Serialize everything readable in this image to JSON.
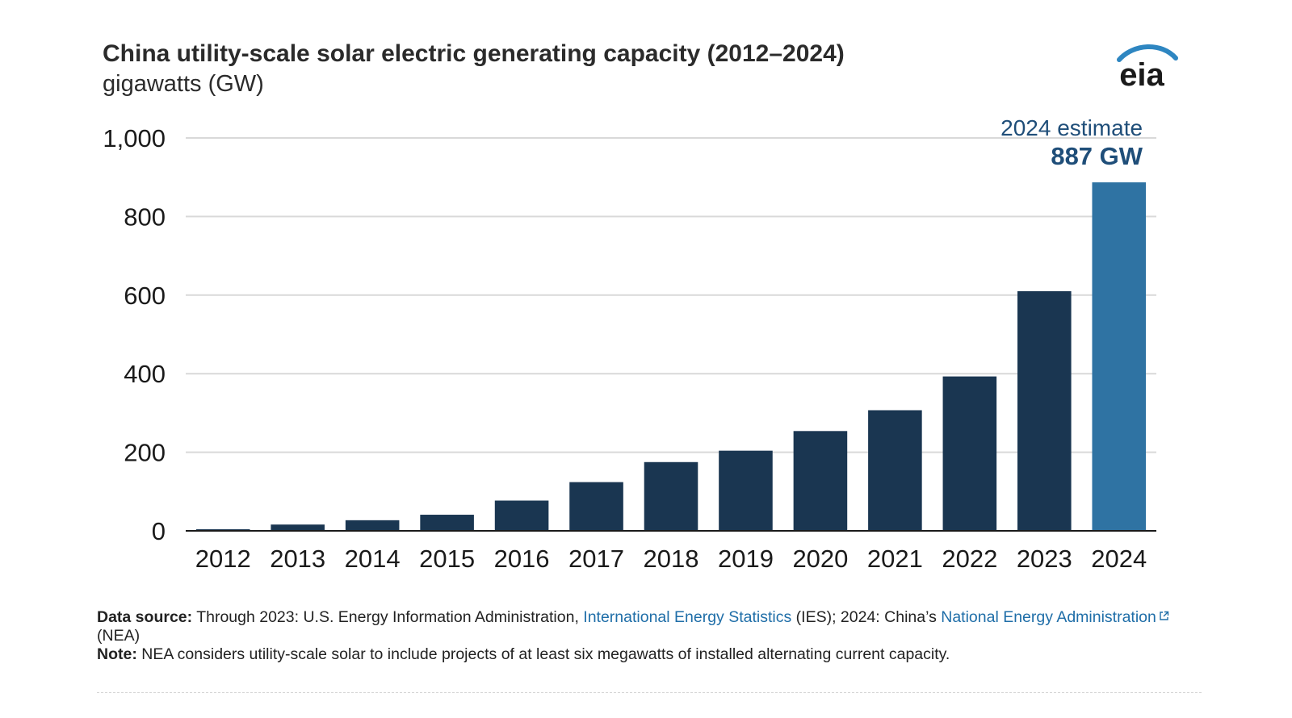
{
  "header": {
    "title": "China utility-scale solar electric generating capacity (2012–2024)",
    "subtitle": "gigawatts (GW)",
    "logo_text": "eia"
  },
  "annotation": {
    "label": "2024 estimate",
    "value": "887 GW"
  },
  "colors": {
    "bar": "#1a3651",
    "highlight": "#2f73a3",
    "annotation": "#1f4e79",
    "grid": "#d9d9d9",
    "logo_arc": "#2e86c1"
  },
  "chart_data": {
    "type": "bar",
    "title": "China utility-scale solar electric generating capacity (2012–2024)",
    "ylabel": "gigawatts (GW)",
    "xlabel": "",
    "categories": [
      "2012",
      "2013",
      "2014",
      "2015",
      "2016",
      "2017",
      "2018",
      "2019",
      "2020",
      "2021",
      "2022",
      "2023",
      "2024"
    ],
    "values": [
      4,
      16,
      27,
      41,
      77,
      124,
      175,
      204,
      254,
      307,
      393,
      610,
      887
    ],
    "ylim": [
      0,
      1000
    ],
    "yticks": [
      0,
      200,
      400,
      600,
      800,
      1000
    ],
    "ytick_labels": [
      "0",
      "200",
      "400",
      "600",
      "800",
      "1,000"
    ],
    "highlight_category": "2024",
    "grid": true
  },
  "footer": {
    "source_label": "Data source:",
    "source_text_1": " Through 2023: U.S. Energy Information Administration, ",
    "source_link_1": "International Energy Statistics",
    "source_text_2": " (IES); 2024: China’s ",
    "source_link_2": "National Energy Administration",
    "source_text_3": "(NEA)",
    "note_label": "Note:",
    "note_text": " NEA considers utility-scale solar to include projects of at least six megawatts of installed alternating current capacity."
  }
}
